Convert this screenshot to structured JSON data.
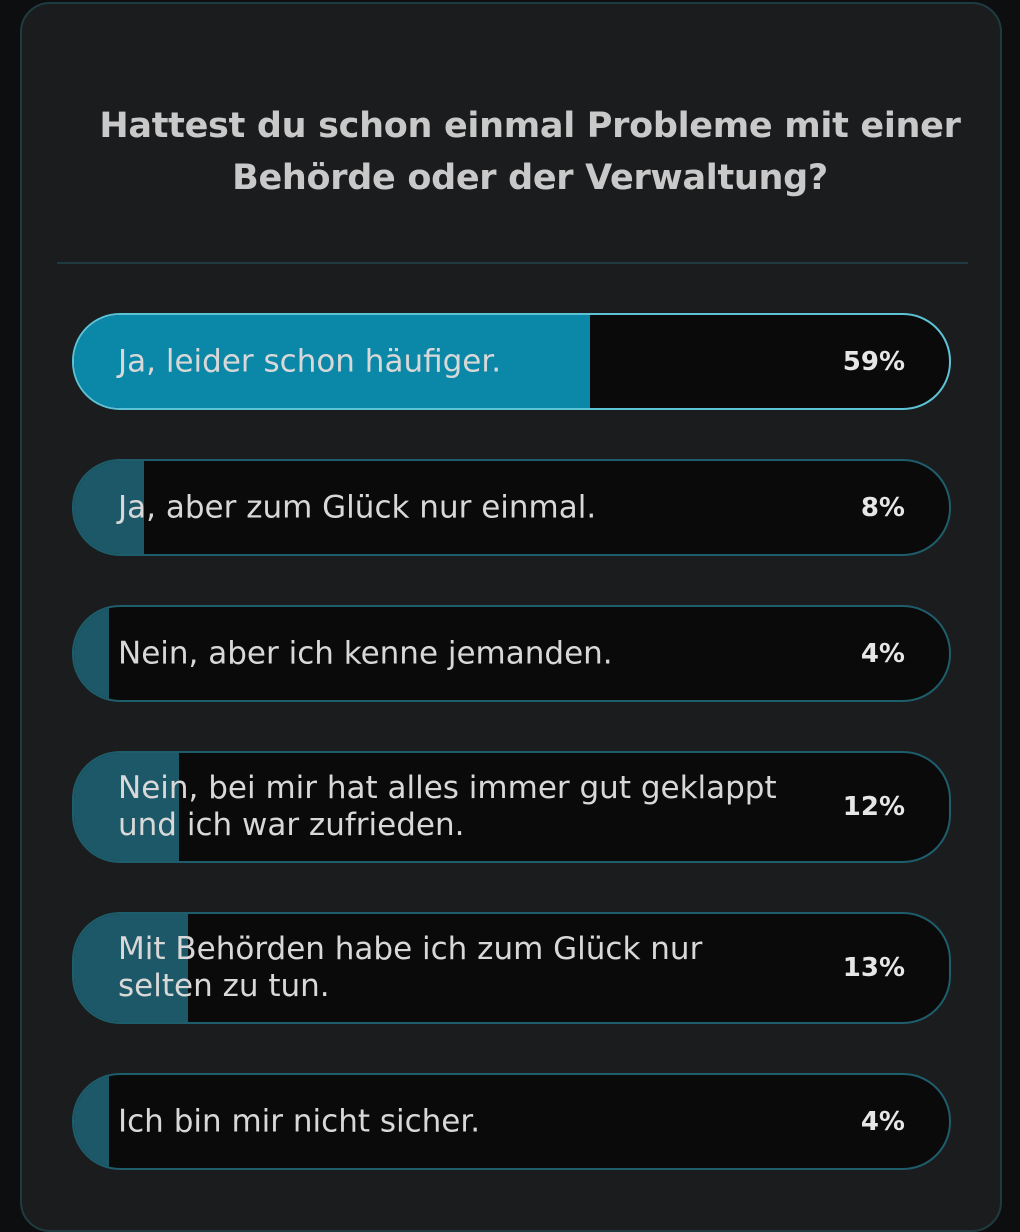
{
  "poll": {
    "question": "Hattest du schon einmal Probleme mit einer Behörde oder der Verwaltung?",
    "options": [
      {
        "label": "Ja, leider schon häufiger.",
        "percent_text": "59%",
        "percent": 59,
        "selected": true
      },
      {
        "label": "Ja, aber zum Glück nur einmal.",
        "percent_text": "8%",
        "percent": 8,
        "selected": false
      },
      {
        "label": "Nein, aber ich kenne jemanden.",
        "percent_text": "4%",
        "percent": 4,
        "selected": false
      },
      {
        "label": "Nein, bei mir hat alles immer gut geklappt\nund ich war zufrieden.",
        "percent_text": "12%",
        "percent": 12,
        "selected": false
      },
      {
        "label": "Mit Behörden habe ich zum Glück nur\nselten zu tun.",
        "percent_text": "13%",
        "percent": 13,
        "selected": false
      },
      {
        "label": "Ich bin mir nicht sicher.",
        "percent_text": "4%",
        "percent": 4,
        "selected": false
      }
    ]
  },
  "colors": {
    "background": "#1b1c1e",
    "selected_fill": "#0b87a8",
    "fill": "#1d5868",
    "border": "#1e5d6b",
    "selected_border": "#5cc3d6"
  }
}
